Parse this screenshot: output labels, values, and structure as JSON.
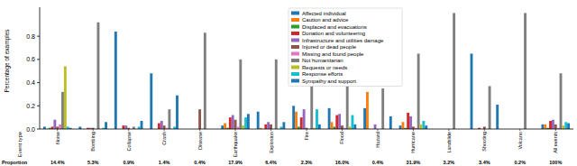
{
  "chart_data": {
    "type": "bar",
    "x_label": "Event type",
    "y_label": "Percentage of examples",
    "categories": [
      "Noise",
      "Bombing",
      "Collapse",
      "Crash",
      "Disease",
      "Earthquake",
      "Explosion",
      "Fire",
      "Flood",
      "Hazard",
      "Hurricane",
      "Landslide",
      "Shooting",
      "Volcano",
      "All events"
    ],
    "series": [
      {
        "name": "Affected individual",
        "color": "#1f77b4",
        "values": [
          0.02,
          0.02,
          0.84,
          0.48,
          0,
          0.03,
          0.15,
          0.2,
          0.18,
          0.18,
          0.03,
          0,
          0.65,
          0,
          0.04
        ]
      },
      {
        "name": "Caution and advice",
        "color": "#ff7f0e",
        "values": [
          0,
          0,
          0,
          0,
          0,
          0.05,
          0.01,
          0.15,
          0.06,
          0.32,
          0.06,
          0,
          0,
          0,
          0.04
        ]
      },
      {
        "name": "Displaced and evacuations",
        "color": "#2ca02c",
        "values": [
          0.01,
          0,
          0,
          0,
          0,
          0.01,
          0,
          0.02,
          0.02,
          0,
          0.01,
          0,
          0,
          0,
          0.01
        ]
      },
      {
        "name": "Donation and volunteering",
        "color": "#d62728",
        "values": [
          0.02,
          0.01,
          0.03,
          0.05,
          0,
          0.1,
          0.04,
          0.1,
          0.12,
          0,
          0.14,
          0,
          0.01,
          0,
          0.07
        ]
      },
      {
        "name": "Infrastructure and utilities damage",
        "color": "#9467bd",
        "values": [
          0.08,
          0.01,
          0.03,
          0.07,
          0,
          0.12,
          0.06,
          0.17,
          0.13,
          0.04,
          0.11,
          0,
          0,
          0,
          0.08
        ]
      },
      {
        "name": "Injured or dead people",
        "color": "#8c564b",
        "values": [
          0.02,
          0.01,
          0.01,
          0.03,
          0.17,
          0.08,
          0.04,
          0.01,
          0.03,
          0,
          0.02,
          0,
          0.02,
          0,
          0.04
        ]
      },
      {
        "name": "Missing and found people",
        "color": "#e377c2",
        "values": [
          0.04,
          0,
          0,
          0.01,
          0,
          0.02,
          0,
          0,
          0.01,
          0,
          0.01,
          0,
          0,
          0,
          0.01
        ]
      },
      {
        "name": "Not humanitarian",
        "color": "#7f7f7f",
        "values": [
          0.32,
          0.92,
          0.02,
          0.17,
          0.83,
          0.6,
          0.6,
          0.37,
          0.37,
          0.35,
          0.65,
          1.0,
          0.37,
          1.0,
          0.48
        ]
      },
      {
        "name": "Requests or needs",
        "color": "#bcbd22",
        "values": [
          0.54,
          0,
          0,
          0,
          0,
          0.03,
          0,
          0.01,
          0.02,
          0,
          0.04,
          0,
          0,
          0,
          0.03
        ]
      },
      {
        "name": "Response efforts",
        "color": "#17becf",
        "values": [
          0.02,
          0.01,
          0.02,
          0.02,
          0,
          0.1,
          0.02,
          0.17,
          0.12,
          0,
          0.07,
          0,
          0,
          0,
          0.06
        ]
      },
      {
        "name": "Sympathy and support",
        "color": "#1f77b4",
        "values": [
          0.01,
          0.06,
          0.07,
          0.29,
          0,
          0.13,
          0.06,
          0.04,
          0.04,
          0.11,
          0.03,
          0,
          0.21,
          0,
          0.05
        ]
      }
    ],
    "ylim": [
      0,
      1.05
    ],
    "yticks": [
      {
        "value": 0,
        "label": "0.0"
      },
      0.2,
      0.4,
      0.6,
      0.8
    ],
    "legend": "upper center",
    "proportion": {
      "label": "Proportion",
      "values": [
        14.4,
        5.3,
        0.9,
        1.4,
        0.4,
        17.9,
        6.4,
        2.3,
        16.0,
        0.4,
        31.9,
        3.2,
        3.4,
        0.2,
        100
      ],
      "value_labels": [
        "14.4%",
        "5.3%",
        "0.9%",
        "1.4%",
        "0.4%",
        "17.9%",
        "6.4%",
        "2.3%",
        "16.0%",
        "0.4%",
        "31.9%",
        "3.2%",
        "3.4%",
        "0.2%",
        "100%"
      ]
    }
  }
}
